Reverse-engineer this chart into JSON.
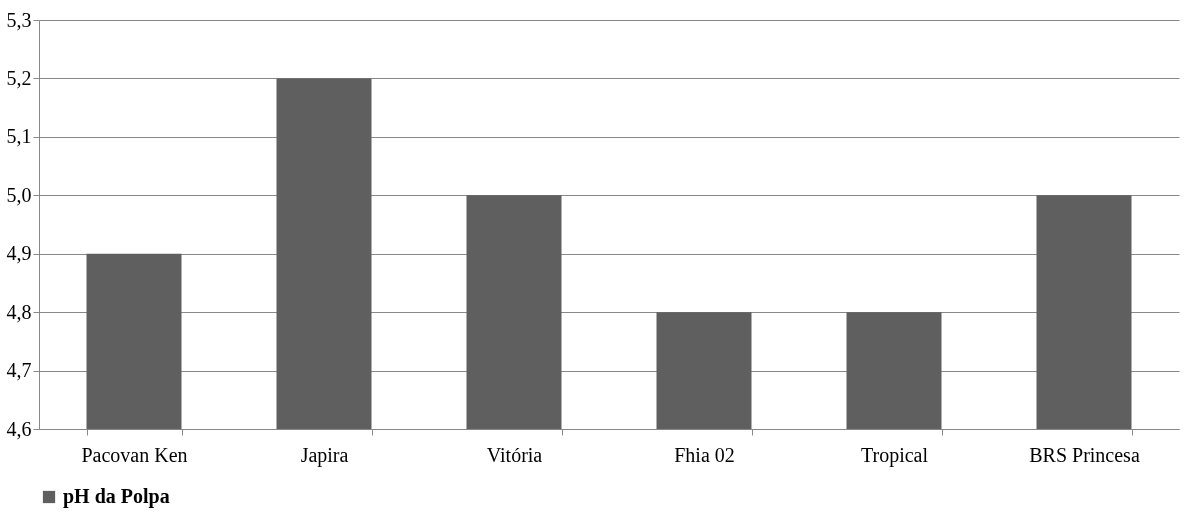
{
  "chart_data": {
    "type": "bar",
    "categories": [
      "Pacovan Ken",
      "Japira",
      "Vitória",
      "Fhia 02",
      "Tropical",
      "BRS Princesa"
    ],
    "series": [
      {
        "name": "pH da Polpa",
        "color": "#5f5f5f",
        "values": [
          4.9,
          5.2,
          5.0,
          4.8,
          4.8,
          5.0
        ]
      }
    ],
    "ylim": [
      4.6,
      5.3
    ],
    "yticks": [
      {
        "value": 4.6,
        "label": "4,6"
      },
      {
        "value": 4.7,
        "label": "4,7"
      },
      {
        "value": 4.8,
        "label": "4,8"
      },
      {
        "value": 4.9,
        "label": "4,9"
      },
      {
        "value": 5.0,
        "label": "5,0"
      },
      {
        "value": 5.1,
        "label": "5,1"
      },
      {
        "value": 5.2,
        "label": "5,2"
      },
      {
        "value": 5.3,
        "label": "5,3"
      }
    ],
    "grid": "y",
    "legend": "bottom"
  }
}
